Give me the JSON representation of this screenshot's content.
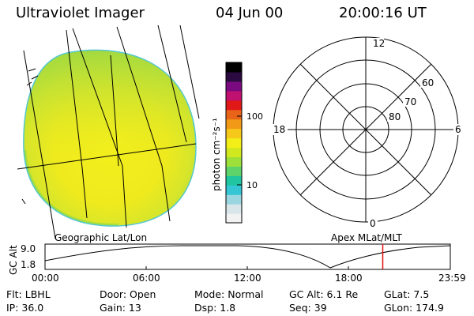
{
  "header": {
    "instrument": "Ultraviolet Imager",
    "date": "04 Jun 00",
    "time": "20:00:16 UT"
  },
  "colorbar": {
    "label": "photon cm⁻²s⁻¹",
    "ticks": [
      "100",
      "10"
    ],
    "colors": [
      "#f2f2f2",
      "#d8e6ea",
      "#9ad6e0",
      "#35c6d6",
      "#1fc6a0",
      "#5ed36a",
      "#9ee03a",
      "#d2e81e",
      "#f3ee18",
      "#f6c81a",
      "#f29a18",
      "#e86418",
      "#e01818",
      "#c01070",
      "#7a0a80",
      "#2a0a40",
      "#000000"
    ]
  },
  "polar": {
    "mlt_labels": {
      "top": "12",
      "bottom": "0",
      "left": "18",
      "right": "6"
    },
    "lat_labels": [
      "60",
      "70",
      "80"
    ]
  },
  "orbit": {
    "left_label": "Geographic Lat/Lon",
    "right_label": "Apex MLat/MLT",
    "axis_label": "GC Alt",
    "y_ticks": [
      "9.0",
      "1.8"
    ],
    "time_ticks": [
      "00:00",
      "06:00",
      "12:00",
      "18:00",
      "23:59"
    ],
    "marker_fraction": 0.8334,
    "marker_color": "#e01010"
  },
  "info": {
    "filter": "Flt: LBHL",
    "door": "Door: Open",
    "mode": "Mode: Normal",
    "gc_alt": "GC Alt: 6.1 Re",
    "glat": "GLat: 7.5",
    "ip": "IP: 36.0",
    "gain": "Gain: 13",
    "dsp": "Dsp: 1.8",
    "seq": "Seq: 39",
    "glon": "GLon: 174.9"
  }
}
